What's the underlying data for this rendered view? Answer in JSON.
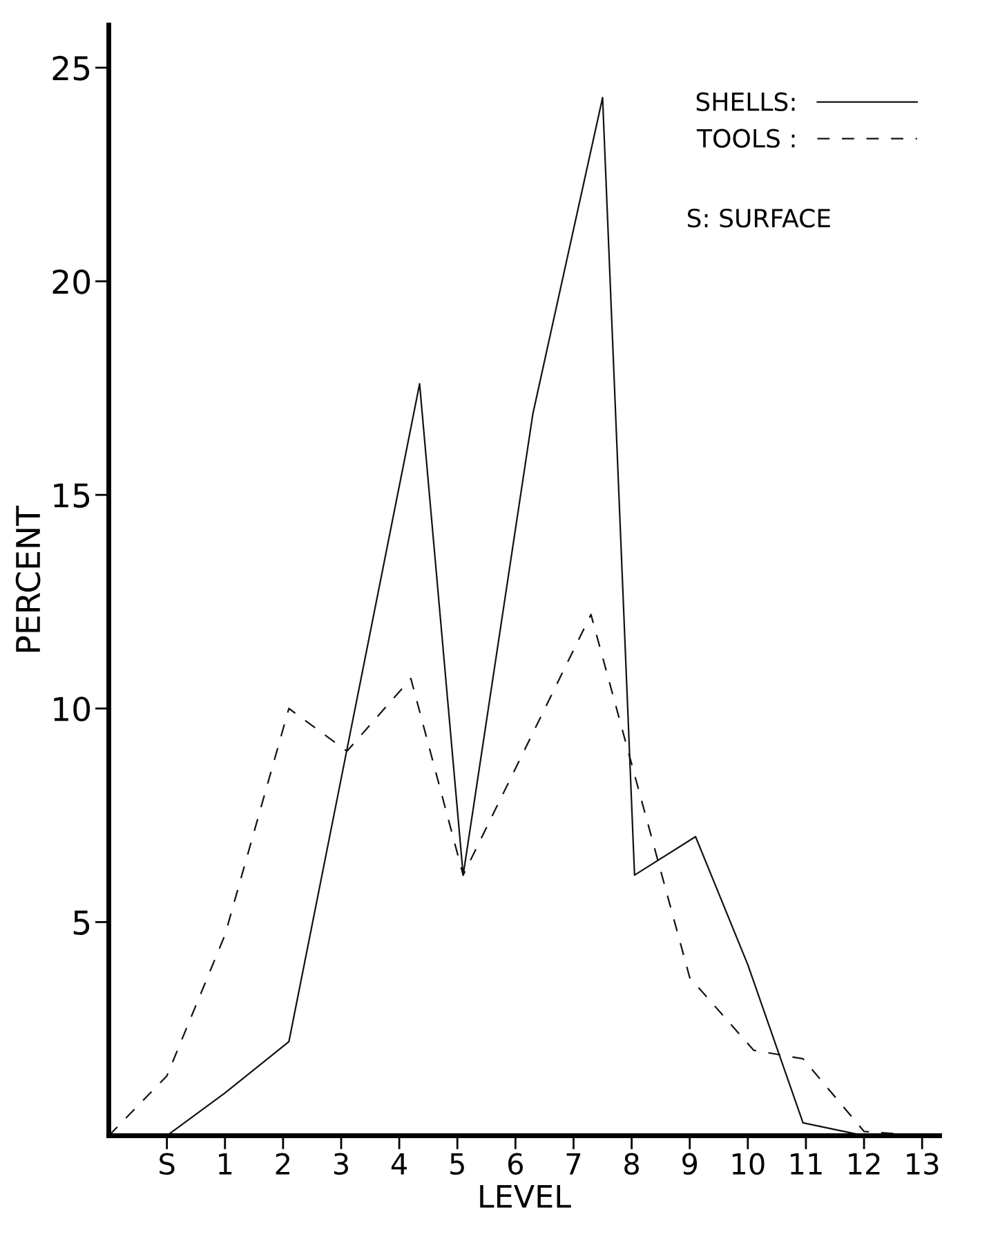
{
  "chart_data": {
    "type": "line",
    "xlabel": "LEVEL",
    "ylabel": "PERCENT",
    "xlim": [
      -1,
      13.3
    ],
    "ylim": [
      0,
      26
    ],
    "xticks": [
      {
        "value": 0,
        "label": "S"
      },
      1,
      2,
      3,
      4,
      5,
      6,
      7,
      8,
      9,
      10,
      11,
      12,
      13
    ],
    "yticks": [
      5,
      10,
      15,
      20,
      25
    ],
    "series": [
      {
        "name": "SHELLS:",
        "color": "#111111",
        "line_style": "solid",
        "x": [
          -1,
          0,
          1,
          2.1,
          4.35,
          5.1,
          6.3,
          7.5,
          8.05,
          9.1,
          10,
          10.95,
          12,
          13
        ],
        "values": [
          0,
          0,
          1,
          2.2,
          17.6,
          6.1,
          16.9,
          24.3,
          6.1,
          7,
          4,
          0.3,
          0,
          0
        ]
      },
      {
        "name": "TOOLS :",
        "color": "#111111",
        "line_style": "dashed",
        "x": [
          -1,
          0,
          1,
          2.1,
          3.1,
          4.2,
          5.1,
          7.3,
          9,
          10.1,
          10.95,
          12,
          13
        ],
        "values": [
          0,
          1.4,
          4.7,
          10,
          9,
          10.7,
          6.1,
          12.2,
          3.7,
          2,
          1.8,
          0.1,
          0
        ]
      }
    ],
    "annotations": [
      "S: SURFACE"
    ],
    "legend": "top right",
    "grid": false,
    "marker": "none"
  }
}
